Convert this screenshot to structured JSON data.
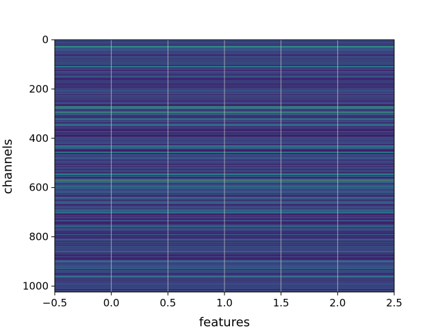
{
  "chart_data": {
    "type": "heatmap",
    "title": "",
    "xlabel": "features",
    "ylabel": "channels",
    "xlim": [
      -0.5,
      2.5
    ],
    "ylim": [
      1024,
      0
    ],
    "y_inverted": true,
    "grid": true,
    "colormap": "viridis",
    "n_rows": 1024,
    "n_cols": 3,
    "xticks": [
      -0.5,
      0.0,
      0.5,
      1.0,
      1.5,
      2.0,
      2.5
    ],
    "xtick_labels": [
      "−0.5",
      "0.0",
      "0.5",
      "1.0",
      "1.5",
      "2.0",
      "2.5"
    ],
    "yticks": [
      0,
      200,
      400,
      600,
      800,
      1000
    ],
    "ytick_labels": [
      "0",
      "200",
      "400",
      "600",
      "800",
      "1000"
    ],
    "bright_rows": [
      {
        "channel": 25,
        "level": 0.55
      },
      {
        "channel": 30,
        "level": 0.45
      },
      {
        "channel": 108,
        "level": 0.5
      },
      {
        "channel": 270,
        "level": 0.55
      },
      {
        "channel": 275,
        "level": 0.6
      },
      {
        "channel": 292,
        "level": 0.62
      },
      {
        "channel": 345,
        "level": 0.5
      },
      {
        "channel": 430,
        "level": 0.45
      },
      {
        "channel": 455,
        "level": 0.48
      },
      {
        "channel": 545,
        "level": 0.5
      },
      {
        "channel": 568,
        "level": 0.68
      },
      {
        "channel": 575,
        "level": 0.5
      },
      {
        "channel": 640,
        "level": 0.45
      },
      {
        "channel": 700,
        "level": 0.45
      },
      {
        "channel": 755,
        "level": 0.48
      },
      {
        "channel": 860,
        "level": 0.42
      },
      {
        "channel": 960,
        "level": 0.45
      }
    ],
    "colors": {
      "base": "#3b2a73",
      "grid": "#d0d0d0"
    }
  }
}
